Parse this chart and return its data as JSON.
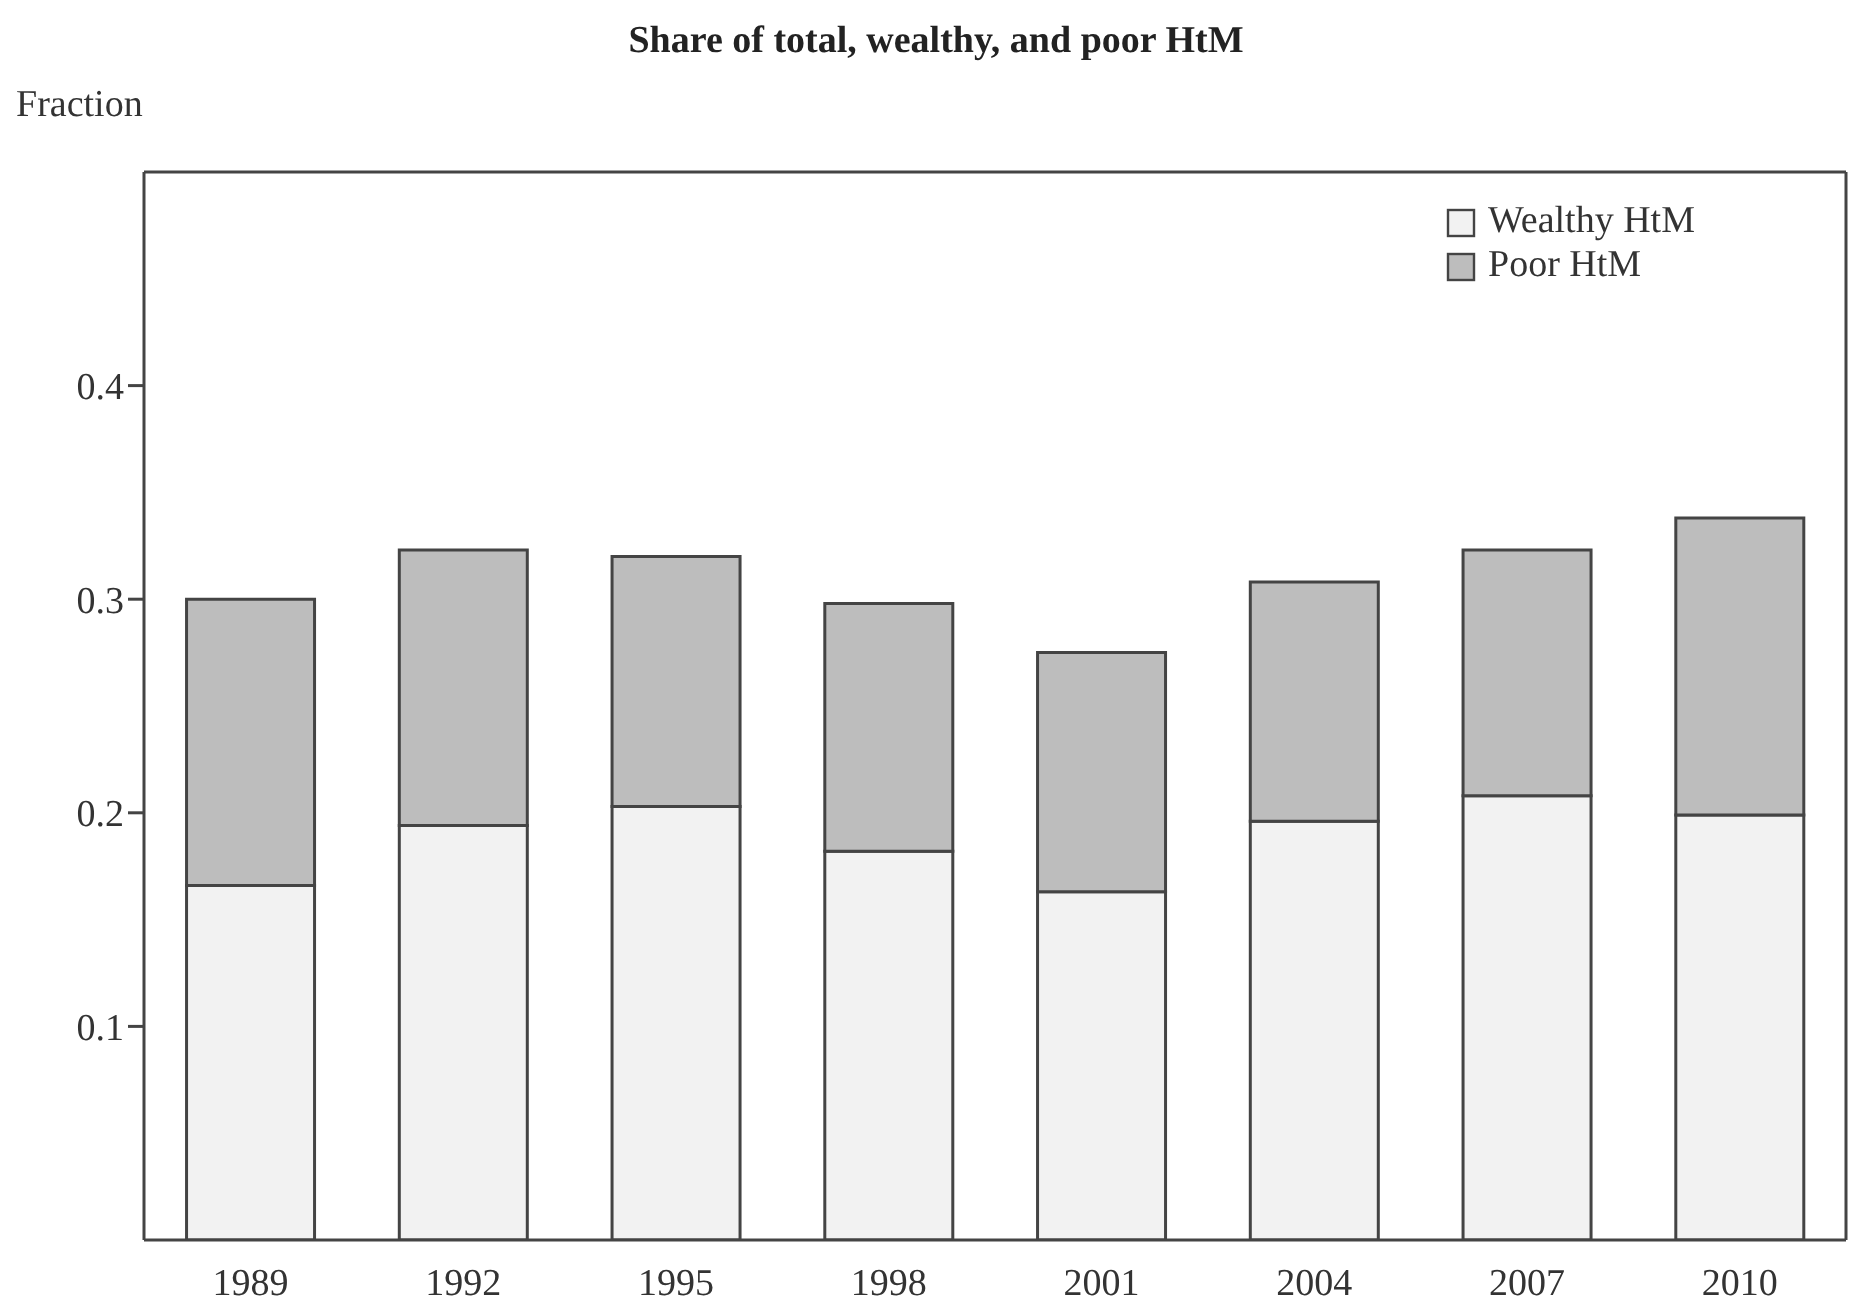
{
  "chart_data": {
    "type": "bar",
    "title": "Share of total, wealthy, and poor HtM",
    "ylabel": "Fraction",
    "categories": [
      "1989",
      "1992",
      "1995",
      "1998",
      "2001",
      "2004",
      "2007",
      "2010"
    ],
    "stacked": true,
    "series": [
      {
        "name": "Wealthy HtM",
        "color": "#f2f2f2",
        "values": [
          0.166,
          0.194,
          0.203,
          0.182,
          0.163,
          0.196,
          0.208,
          0.199
        ]
      },
      {
        "name": "Poor HtM",
        "color": "#bdbdbd",
        "values": [
          0.134,
          0.129,
          0.117,
          0.116,
          0.112,
          0.112,
          0.115,
          0.139
        ]
      }
    ],
    "ylim": [
      0,
      0.5
    ],
    "yticks": [
      0.1,
      0.2,
      0.3,
      0.4
    ],
    "legend": "top right",
    "grid": false
  }
}
